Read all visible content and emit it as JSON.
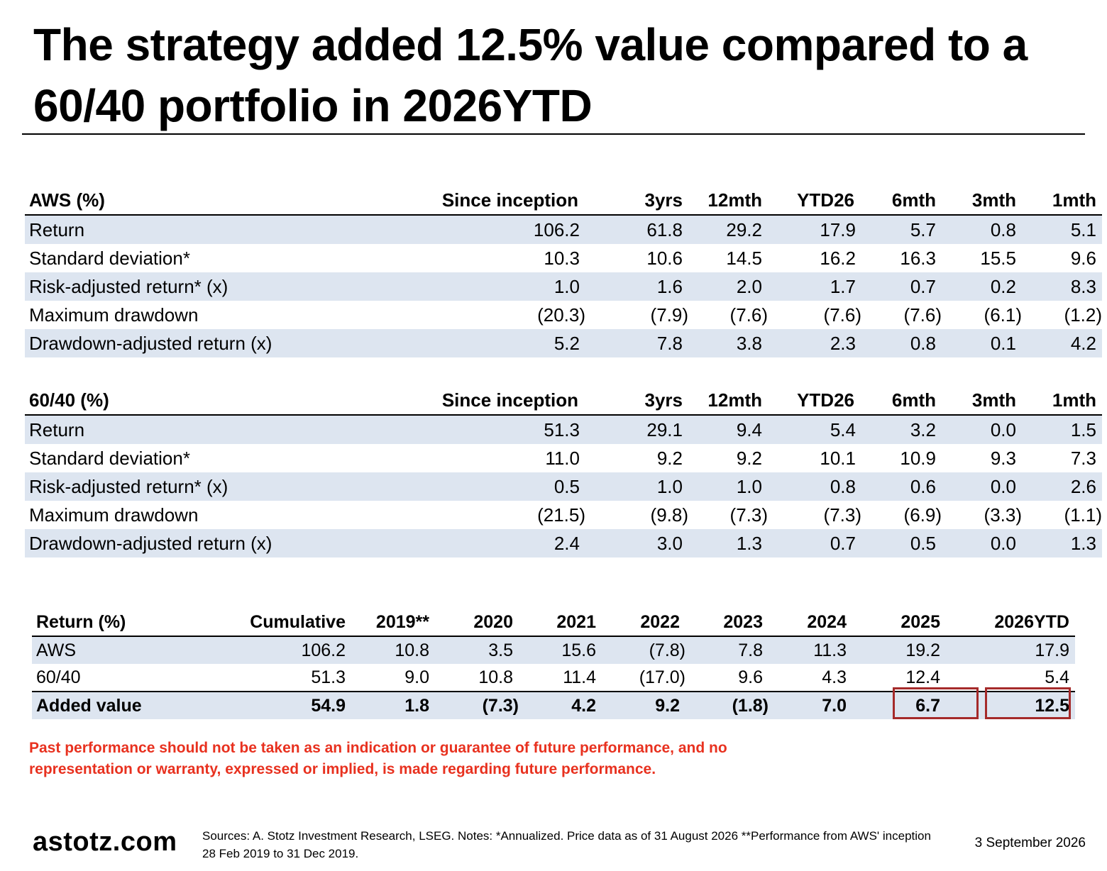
{
  "title": "The strategy added 12.5% value compared to a 60/40 portfolio in 2026YTD",
  "aws_table": {
    "header": [
      "AWS (%)",
      "Since inception",
      "3yrs",
      "12mth",
      "YTD26",
      "6mth",
      "3mth",
      "1mth"
    ],
    "rows": [
      [
        "Return",
        "106.2",
        "61.8",
        "29.2",
        "17.9",
        "5.7",
        "0.8",
        "5.1"
      ],
      [
        "Standard deviation*",
        "10.3",
        "10.6",
        "14.5",
        "16.2",
        "16.3",
        "15.5",
        "9.6"
      ],
      [
        "Risk-adjusted return* (x)",
        "1.0",
        "1.6",
        "2.0",
        "1.7",
        "0.7",
        "0.2",
        "8.3"
      ],
      [
        "Maximum drawdown",
        "(20.3)",
        "(7.9)",
        "(7.6)",
        "(7.6)",
        "(7.6)",
        "(6.1)",
        "(1.2)"
      ],
      [
        "Drawdown-adjusted return (x)",
        "5.2",
        "7.8",
        "3.8",
        "2.3",
        "0.8",
        "0.1",
        "4.2"
      ]
    ]
  },
  "sixty_forty_table": {
    "header": [
      "60/40 (%)",
      "Since inception",
      "3yrs",
      "12mth",
      "YTD26",
      "6mth",
      "3mth",
      "1mth"
    ],
    "rows": [
      [
        "Return",
        "51.3",
        "29.1",
        "9.4",
        "5.4",
        "3.2",
        "0.0",
        "1.5"
      ],
      [
        "Standard deviation*",
        "11.0",
        "9.2",
        "9.2",
        "10.1",
        "10.9",
        "9.3",
        "7.3"
      ],
      [
        "Risk-adjusted return* (x)",
        "0.5",
        "1.0",
        "1.0",
        "0.8",
        "0.6",
        "0.0",
        "2.6"
      ],
      [
        "Maximum drawdown",
        "(21.5)",
        "(9.8)",
        "(7.3)",
        "(7.3)",
        "(6.9)",
        "(3.3)",
        "(1.1)"
      ],
      [
        "Drawdown-adjusted return (x)",
        "2.4",
        "3.0",
        "1.3",
        "0.7",
        "0.5",
        "0.0",
        "1.3"
      ]
    ]
  },
  "return_table": {
    "header": [
      "Return (%)",
      "Cumulative",
      "2019**",
      "2020",
      "2021",
      "2022",
      "2023",
      "2024",
      "2025",
      "2026YTD"
    ],
    "rows": [
      [
        "AWS",
        "106.2",
        "10.8",
        "3.5",
        "15.6",
        "(7.8)",
        "7.8",
        "11.3",
        "19.2",
        "17.9"
      ],
      [
        "60/40",
        "51.3",
        "9.0",
        "10.8",
        "11.4",
        "(17.0)",
        "9.6",
        "4.3",
        "12.4",
        "5.4"
      ],
      [
        "Added value",
        "54.9",
        "1.8",
        "(7.3)",
        "4.2",
        "9.2",
        "(1.8)",
        "7.0",
        "6.7",
        "12.5"
      ]
    ],
    "highlight_color": "#a52a2a"
  },
  "disclaimer": "Past performance should not be taken as an indication or guarantee of future performance, and no representation or warranty, expressed or implied, is made regarding future performance.",
  "footer": {
    "logo": "astotz.com",
    "sources": "Sources: A. Stotz Investment Research, LSEG. Notes: *Annualized. Price data as of 31 August 2026 **Performance from AWS' inception 28 Feb 2019 to 31 Dec 2019.",
    "date": "3 September 2026"
  },
  "colors": {
    "band": "#dde5f0",
    "disclaimer": "#e8311f"
  }
}
